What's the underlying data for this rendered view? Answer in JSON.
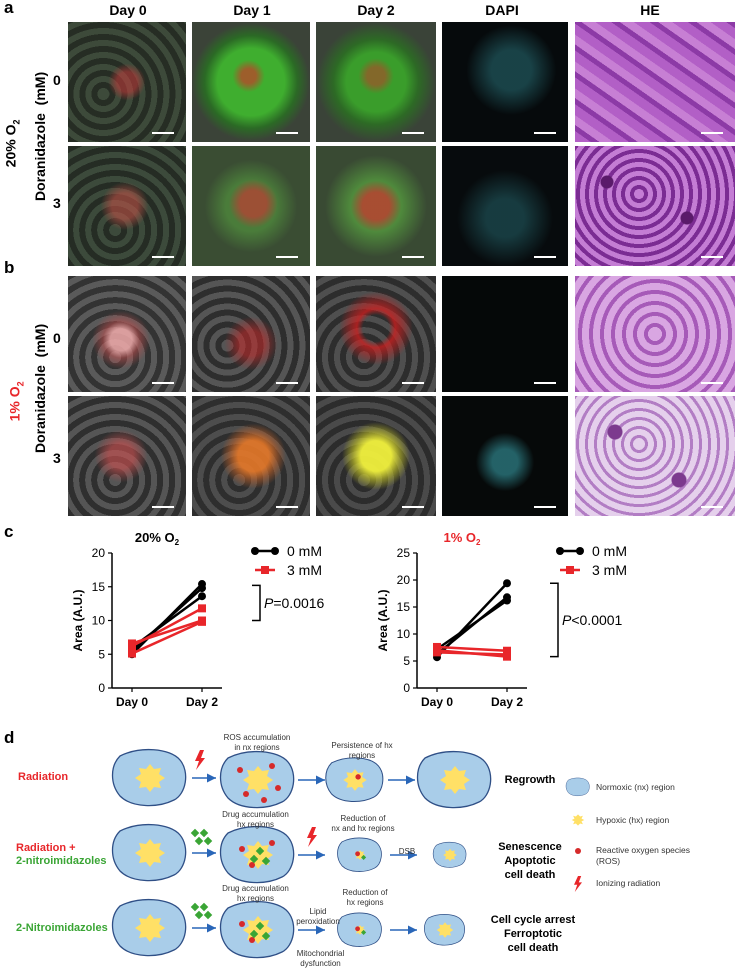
{
  "panel_labels": {
    "a": "a",
    "b": "b",
    "c": "c",
    "d": "d"
  },
  "columns": [
    "Day 0",
    "Day 1",
    "Day 2",
    "DAPI",
    "HE"
  ],
  "panel_a": {
    "condition": "20% O",
    "condition_sub": "2",
    "drug": "Doranidazole",
    "unit": "(mM)",
    "dose0": "0",
    "dose3": "3"
  },
  "panel_b": {
    "condition": "1% O",
    "condition_sub": "2",
    "drug": "Doranidazole",
    "unit": "(mM)",
    "dose0": "0",
    "dose3": "3",
    "condition_color": "#e8262a"
  },
  "colors": {
    "black_series": "#000000",
    "red_series": "#e8262a",
    "red_text": "#e8262a",
    "green_text": "#3aa535",
    "cell_fill": "#a9cde9",
    "cell_stroke": "#2f4f86",
    "hypoxic": "#ffe066",
    "ros": "#d62a2a",
    "arrow": "#2966b8"
  },
  "chart_data": [
    {
      "type": "line",
      "title": "20% O",
      "title_sub": "2",
      "ylabel": "Area (A.U.)",
      "xlabel": "",
      "categories": [
        "Day 0",
        "Day 2"
      ],
      "ylim": [
        0,
        20
      ],
      "yticks": [
        0,
        5,
        10,
        15,
        20
      ],
      "legend": [
        "0 mM",
        "3 mM"
      ],
      "legend_position": "top-right",
      "series": [
        {
          "name": "0 mM",
          "color": "#000000",
          "lines": [
            [
              5.0,
              15.4
            ],
            [
              5.5,
              14.8
            ],
            [
              6.0,
              13.6
            ]
          ]
        },
        {
          "name": "3 mM",
          "color": "#e8262a",
          "lines": [
            [
              5.1,
              9.8
            ],
            [
              6.2,
              11.8
            ],
            [
              6.6,
              10.0
            ]
          ]
        }
      ],
      "annotation": {
        "italic": "P",
        "text": "=0.0016"
      }
    },
    {
      "type": "line",
      "title": "1% O",
      "title_sub": "2",
      "ylabel": "Area (A.U.)",
      "xlabel": "",
      "categories": [
        "Day 0",
        "Day 2"
      ],
      "ylim": [
        0,
        25
      ],
      "yticks": [
        0,
        5,
        10,
        15,
        20,
        25
      ],
      "legend": [
        "0 mM",
        "3 mM"
      ],
      "legend_position": "top-right",
      "series": [
        {
          "name": "0 mM",
          "color": "#000000",
          "lines": [
            [
              5.7,
              19.4
            ],
            [
              6.3,
              16.8
            ],
            [
              7.2,
              16.2
            ]
          ]
        },
        {
          "name": "3 mM",
          "color": "#e8262a",
          "lines": [
            [
              7.6,
              6.9
            ],
            [
              7.0,
              5.8
            ],
            [
              6.6,
              6.2
            ]
          ]
        }
      ],
      "annotation": {
        "italic": "P",
        "text": "<0.0001"
      }
    }
  ],
  "panel_d": {
    "rows": [
      {
        "label": "Radiation",
        "color": "#e8262a",
        "outcome": "Regrowth"
      },
      {
        "label": "Radiation +",
        "label2": "2-nitroimidazoles",
        "color": "#e8262a",
        "color2": "#3aa535",
        "outcome": "Senescence",
        "outcome2": "Apoptotic",
        "outcome3": "cell death"
      },
      {
        "label": "2-Nitroimidazoles",
        "color": "#3aa535",
        "outcome": "Cell cycle arrest",
        "outcome2": "Ferroptotic",
        "outcome3": "cell death"
      }
    ],
    "texts": {
      "r1_a": "ROS accumulation",
      "r1_b": "in nx regions",
      "r1_c": "Persistence of hx",
      "r1_d": "regions",
      "r2_a": "Drug  accumulation",
      "r2_b": "hx regions",
      "r2_c": "Reduction of",
      "r2_d": "nx and hx regions",
      "r2_e": "DSB",
      "r3_a": "Drug  accumulation",
      "r3_b": "hx regions",
      "r3_c": "Lipid",
      "r3_d": "peroxidation",
      "r3_e": "Mitochondrial",
      "r3_f": "dysfunction",
      "r3_g": "Reduction of",
      "r3_h": "hx regions"
    },
    "legend": [
      {
        "icon": "normoxic-region-icon",
        "text": "Normoxic (nx) region"
      },
      {
        "icon": "hypoxic-region-icon",
        "text": "Hypoxic (hx) region"
      },
      {
        "icon": "ros-dot-icon",
        "text": "Reactive oxygen species",
        "text2": "(ROS)"
      },
      {
        "icon": "radiation-bolt-icon",
        "text": "Ionizing radiation"
      }
    ]
  }
}
